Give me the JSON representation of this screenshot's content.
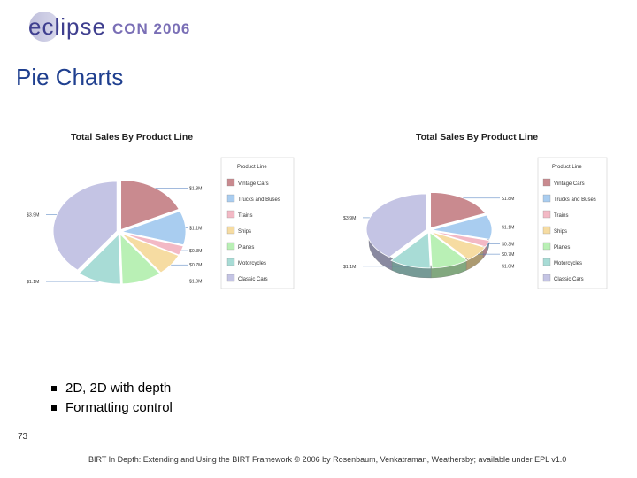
{
  "header": {
    "logo_prefix": "eclipse",
    "logo_suffix": "CON 2006"
  },
  "slide": {
    "title": "Pie Charts",
    "bullets": [
      "2D, 2D with depth",
      "Formatting control"
    ],
    "page_number": "73",
    "footer": "BIRT In Depth: Extending and Using the BIRT Framework © 2006 by Rosenbaum, Venkatraman, Weathersby; available under EPL v1.0"
  },
  "chart_data": [
    {
      "type": "pie",
      "variant": "2D",
      "title": "Total Sales By Product Line",
      "legend_title": "Product Line",
      "legend_position": "right",
      "categories": [
        "Vintage Cars",
        "Trucks and Buses",
        "Trains",
        "Ships",
        "Planes",
        "Motorcycles",
        "Classic Cars"
      ],
      "values": [
        1.8,
        1.1,
        0.3,
        0.7,
        1.0,
        1.1,
        3.9
      ],
      "value_labels": [
        "$1.8M",
        "$1.1M",
        "$0.3M",
        "$0.7M",
        "$1.0M",
        "$1.1M",
        "$3.9M"
      ],
      "colors": [
        "#c98a8f",
        "#a9cdf0",
        "#f3b9c5",
        "#f6dca2",
        "#b9f0b5",
        "#a8dcd6",
        "#c4c4e4"
      ]
    },
    {
      "type": "pie",
      "variant": "2D with depth",
      "title": "Total Sales By Product Line",
      "legend_title": "Product Line",
      "legend_position": "right",
      "categories": [
        "Vintage Cars",
        "Trucks and Buses",
        "Trains",
        "Ships",
        "Planes",
        "Motorcycles",
        "Classic Cars"
      ],
      "values": [
        1.8,
        1.1,
        0.3,
        0.7,
        1.0,
        1.1,
        3.9
      ],
      "value_labels": [
        "$1.8M",
        "$1.1M",
        "$0.3M",
        "$0.7M",
        "$1.0M",
        "$1.1M",
        "$3.9M"
      ],
      "colors": [
        "#c98a8f",
        "#a9cdf0",
        "#f3b9c5",
        "#f6dca2",
        "#b9f0b5",
        "#a8dcd6",
        "#c4c4e4"
      ]
    }
  ]
}
